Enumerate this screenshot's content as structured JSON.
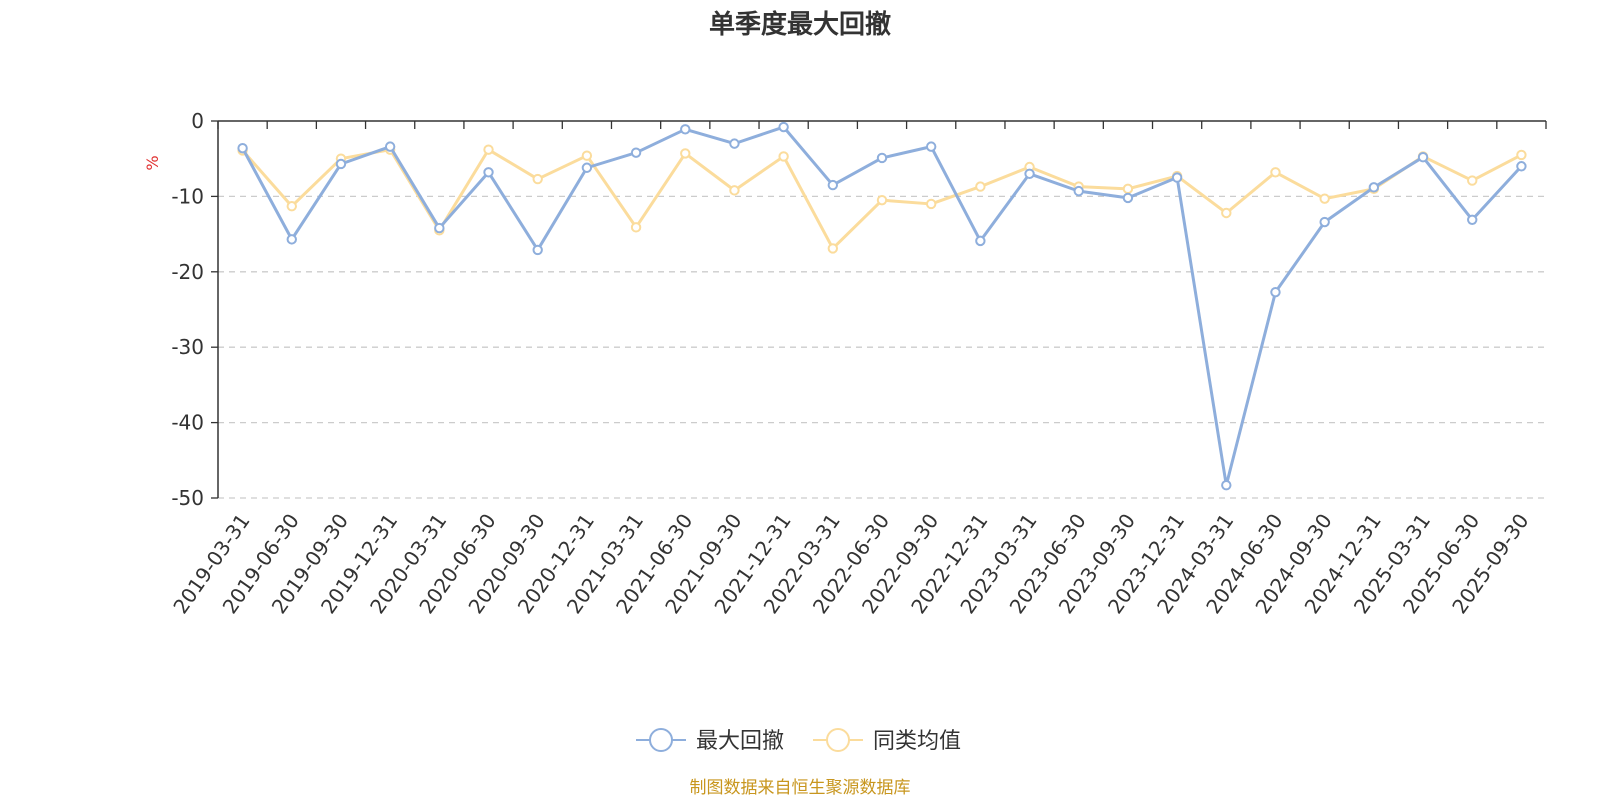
{
  "chart_data": {
    "type": "line",
    "title": "单季度最大回撤",
    "ylabel": "%",
    "ylim": [
      -50,
      0
    ],
    "yticks": [
      0,
      -10,
      -20,
      -30,
      -40,
      -50
    ],
    "grid": true,
    "legend_position": "bottom",
    "categories": [
      "2019-03-31",
      "2019-06-30",
      "2019-09-30",
      "2019-12-31",
      "2020-03-31",
      "2020-06-30",
      "2020-09-30",
      "2020-12-31",
      "2021-03-31",
      "2021-06-30",
      "2021-09-30",
      "2021-12-31",
      "2022-03-31",
      "2022-06-30",
      "2022-09-30",
      "2022-12-31",
      "2023-03-31",
      "2023-06-30",
      "2023-09-30",
      "2023-12-31",
      "2024-03-31",
      "2024-06-30",
      "2024-09-30",
      "2024-12-31",
      "2025-03-31",
      "2025-06-30",
      "2025-09-30"
    ],
    "series": [
      {
        "name": "最大回撤",
        "color": "#8eaedc",
        "values": [
          -3.6,
          -15.7,
          -5.7,
          -3.4,
          -14.2,
          -6.8,
          -17.1,
          -6.2,
          -4.2,
          -1.1,
          -3.0,
          -0.8,
          -8.5,
          -4.9,
          -3.4,
          -15.9,
          -7.0,
          -9.3,
          -10.2,
          -7.5,
          -48.3,
          -22.7,
          -13.4,
          -8.8,
          -4.8,
          -13.1,
          -6.0
        ]
      },
      {
        "name": "同类均值",
        "color": "#fbdc9c",
        "values": [
          -3.9,
          -11.3,
          -5.0,
          -3.8,
          -14.5,
          -3.8,
          -7.7,
          -4.6,
          -14.1,
          -4.3,
          -9.2,
          -4.7,
          -16.9,
          -10.5,
          -11.0,
          -8.7,
          -6.1,
          -8.7,
          -9.0,
          -7.3,
          -12.2,
          -6.8,
          -10.3,
          -9.0,
          -4.7,
          -7.9,
          -4.5
        ]
      }
    ]
  },
  "footer": {
    "source": "制图数据来自恒生聚源数据库"
  }
}
